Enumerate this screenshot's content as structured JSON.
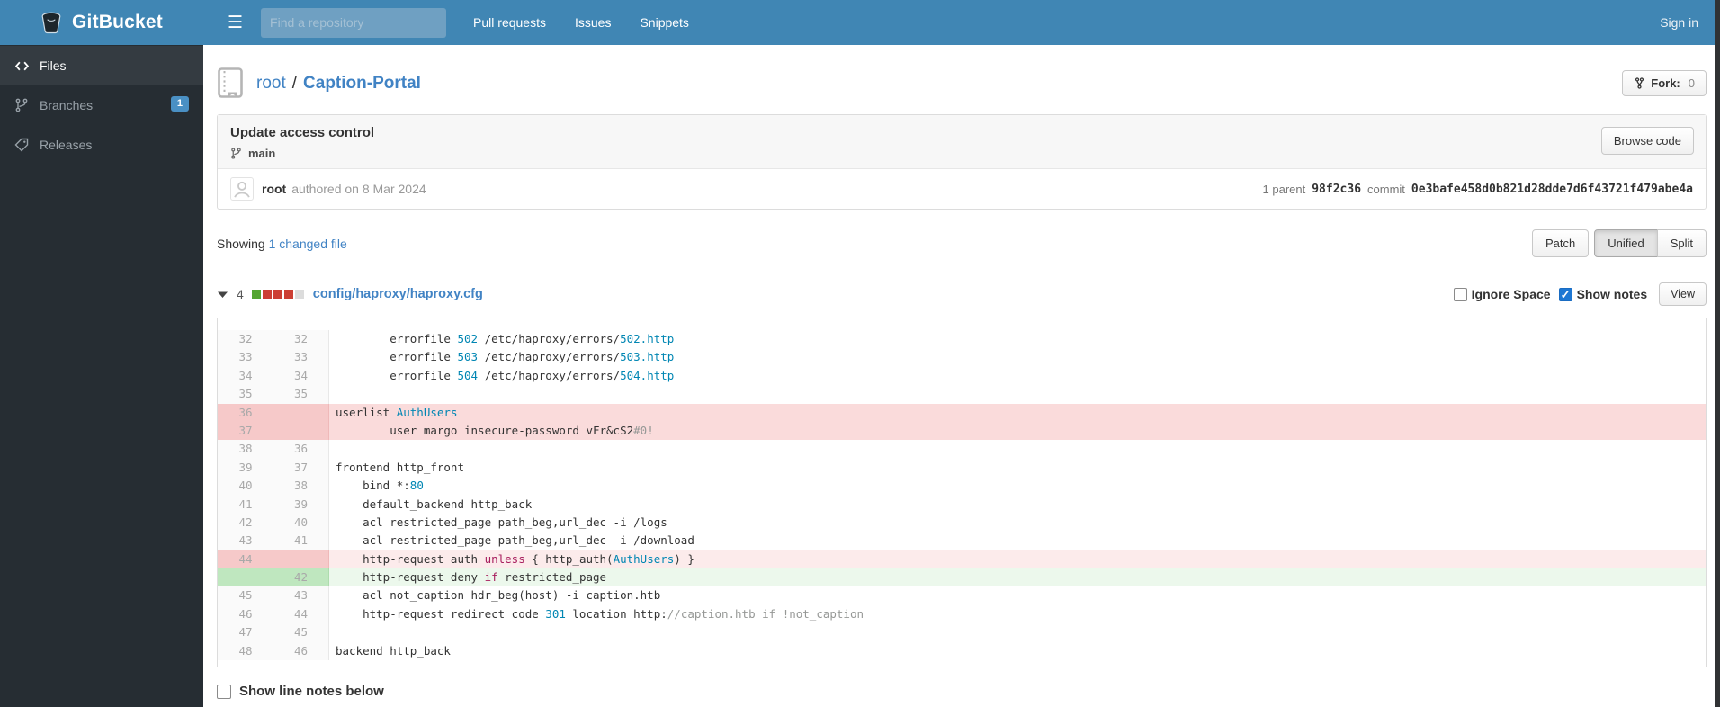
{
  "colors": {
    "navbar": "#4086b4",
    "accent_link": "#4183c4",
    "badge": "#4a90c4",
    "stat_added": "#55a532",
    "stat_deleted": "#cc3f34",
    "stat_neutral": "#dcdcdc",
    "checkbox_checked": "#1e77d3"
  },
  "navbar": {
    "brand": "GitBucket",
    "search_placeholder": "Find a repository",
    "links": [
      "Pull requests",
      "Issues",
      "Snippets"
    ],
    "signin_label": "Sign in"
  },
  "sidebar": {
    "items": [
      {
        "label": "Files",
        "icon": "code-icon",
        "active": true
      },
      {
        "label": "Branches",
        "icon": "branch-icon",
        "active": false,
        "badge": "1"
      },
      {
        "label": "Releases",
        "icon": "tag-icon",
        "active": false
      }
    ]
  },
  "repo": {
    "owner": "root",
    "separator": "/",
    "name": "Caption-Portal",
    "fork_label": "Fork:",
    "fork_count": "0"
  },
  "commit": {
    "title": "Update access control",
    "branch": "main",
    "author": "root",
    "authored_text": "authored on 8 Mar 2024",
    "browse_code_label": "Browse code",
    "parent_label": "1 parent",
    "parent_hash": "98f2c36",
    "commit_label": "commit",
    "commit_hash": "0e3bafe458d0b821d28dde7d6f43721f479abe4a"
  },
  "summary": {
    "showing_label": "Showing",
    "changed_link": "1 changed file",
    "view_buttons": [
      "Patch",
      "Unified",
      "Split"
    ],
    "active_view": "Unified"
  },
  "diff": {
    "changes_count": "4",
    "stat_blocks": [
      "added",
      "deleted",
      "deleted",
      "deleted",
      "neutral"
    ],
    "filename": "config/haproxy/haproxy.cfg",
    "ignore_space_label": "Ignore Space",
    "ignore_space_checked": false,
    "show_notes_label": "Show notes",
    "show_notes_checked": true,
    "view_button_label": "View",
    "rows": [
      {
        "old": "32",
        "new": "32",
        "type": "ctx",
        "tokens": [
          [
            "        errorfile ",
            "p"
          ],
          [
            "502",
            "n"
          ],
          [
            " /etc/haproxy/errors/",
            "p"
          ],
          [
            "502.http",
            "n"
          ]
        ]
      },
      {
        "old": "33",
        "new": "33",
        "type": "ctx",
        "tokens": [
          [
            "        errorfile ",
            "p"
          ],
          [
            "503",
            "n"
          ],
          [
            " /etc/haproxy/errors/",
            "p"
          ],
          [
            "503.http",
            "n"
          ]
        ]
      },
      {
        "old": "34",
        "new": "34",
        "type": "ctx",
        "tokens": [
          [
            "        errorfile ",
            "p"
          ],
          [
            "504",
            "n"
          ],
          [
            " /etc/haproxy/errors/",
            "p"
          ],
          [
            "504.http",
            "n"
          ]
        ]
      },
      {
        "old": "35",
        "new": "35",
        "type": "ctx",
        "tokens": []
      },
      {
        "old": "36",
        "new": "",
        "type": "del",
        "tokens": [
          [
            "userlist ",
            "p"
          ],
          [
            "AuthUsers",
            "n"
          ]
        ]
      },
      {
        "old": "37",
        "new": "",
        "type": "del",
        "tokens": [
          [
            "        user margo insecure-password vFr&cS2",
            "p"
          ],
          [
            "#0!",
            "c"
          ]
        ]
      },
      {
        "old": "38",
        "new": "36",
        "type": "ctx",
        "tokens": []
      },
      {
        "old": "39",
        "new": "37",
        "type": "ctx",
        "tokens": [
          [
            "frontend http_front",
            "p"
          ]
        ]
      },
      {
        "old": "40",
        "new": "38",
        "type": "ctx",
        "tokens": [
          [
            "    bind *:",
            "p"
          ],
          [
            "80",
            "n"
          ]
        ]
      },
      {
        "old": "41",
        "new": "39",
        "type": "ctx",
        "tokens": [
          [
            "    default_backend http_back",
            "p"
          ]
        ]
      },
      {
        "old": "42",
        "new": "40",
        "type": "ctx",
        "tokens": [
          [
            "    acl restricted_page path_beg,url_dec -i /logs",
            "p"
          ]
        ]
      },
      {
        "old": "43",
        "new": "41",
        "type": "ctx",
        "tokens": [
          [
            "    acl restricted_page path_beg,url_dec -i /download",
            "p"
          ]
        ]
      },
      {
        "old": "44",
        "new": "",
        "type": "delpair",
        "tokens": [
          [
            "    http-request auth ",
            "p"
          ],
          [
            "unless",
            "k"
          ],
          [
            " { http_auth(",
            "p"
          ],
          [
            "AuthUsers",
            "n"
          ],
          [
            ") }",
            "p"
          ]
        ]
      },
      {
        "old": "",
        "new": "42",
        "type": "add",
        "tokens": [
          [
            "    http-request deny ",
            "p"
          ],
          [
            "if",
            "k"
          ],
          [
            " restricted_page",
            "p"
          ]
        ]
      },
      {
        "old": "45",
        "new": "43",
        "type": "ctx",
        "tokens": [
          [
            "    acl not_caption hdr_beg(host) -i caption.htb",
            "p"
          ]
        ]
      },
      {
        "old": "46",
        "new": "44",
        "type": "ctx",
        "tokens": [
          [
            "    http-request redirect code ",
            "p"
          ],
          [
            "301",
            "n"
          ],
          [
            " location http:",
            "p"
          ],
          [
            "//caption.htb if !not_caption",
            "c"
          ]
        ]
      },
      {
        "old": "47",
        "new": "45",
        "type": "ctx",
        "tokens": []
      },
      {
        "old": "48",
        "new": "46",
        "type": "ctx",
        "tokens": [
          [
            "backend http_back",
            "p"
          ]
        ]
      }
    ]
  },
  "footer": {
    "show_line_notes_label": "Show line notes below",
    "show_line_notes_checked": false
  }
}
